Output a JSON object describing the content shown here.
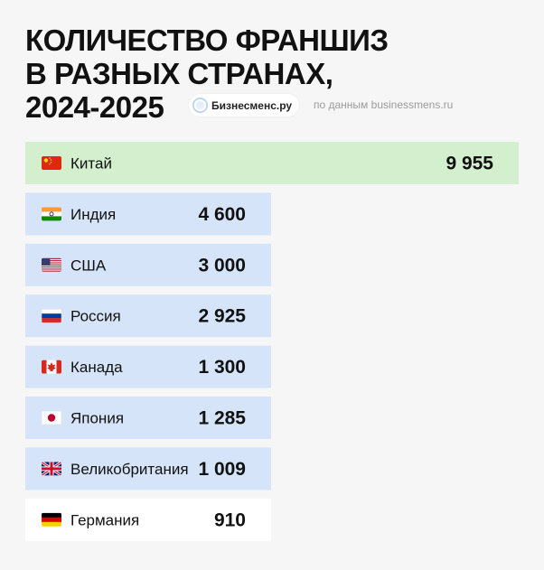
{
  "header": {
    "title_lines": [
      "КОЛИЧЕСТВО ФРАНШИЗ",
      "В РАЗНЫХ СТРАНАХ,",
      "2024-2025"
    ],
    "brand_name": "Бизнесменс.ру",
    "source": "по данным businessmens.ru"
  },
  "colors": {
    "highlight_bar": "#d3efcd",
    "bar": "#d5e4f8",
    "last_bar": "#ffffff",
    "text": "#111111"
  },
  "chart_data": {
    "type": "bar",
    "orientation": "horizontal",
    "categories": [
      "Китай",
      "Индия",
      "США",
      "Россия",
      "Канада",
      "Япония",
      "Великобритания",
      "Германия"
    ],
    "values": [
      9955,
      4600,
      3000,
      2925,
      1300,
      1285,
      1009,
      910
    ],
    "value_labels": [
      "9 955",
      "4 600",
      "3 000",
      "2 925",
      "1 300",
      "1 285",
      "1 009",
      "910"
    ],
    "flags": [
      "china-flag-icon",
      "india-flag-icon",
      "usa-flag-icon",
      "russia-flag-icon",
      "canada-flag-icon",
      "japan-flag-icon",
      "uk-flag-icon",
      "germany-flag-icon"
    ],
    "grid": false,
    "legend": "none"
  }
}
